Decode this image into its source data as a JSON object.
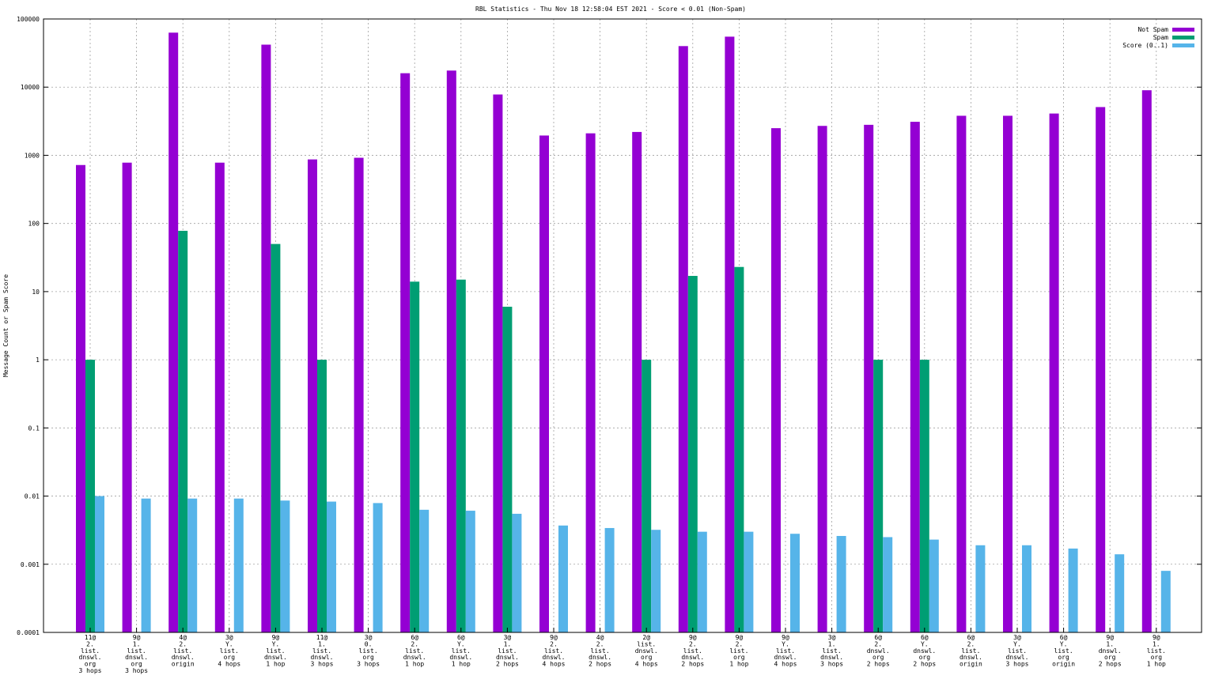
{
  "chart_data": {
    "type": "bar",
    "title": "RBL Statistics - Thu Nov 18 12:58:04 EST 2021 - Score < 0.01 (Non-Spam)",
    "xlabel": "",
    "ylabel": "Message Count or Spam Score",
    "yscale": "log",
    "ylim": [
      0.0001,
      100000
    ],
    "yticks": [
      "0.0001",
      "0.001",
      "0.01",
      "0.1",
      "1",
      "10",
      "100",
      "1000",
      "10000",
      "100000"
    ],
    "grid": true,
    "legend_position": "top-right",
    "categories": [
      [
        "11@",
        "2.",
        "list.",
        "dnswl.",
        "org",
        "3 hops"
      ],
      [
        "9@",
        "1.",
        "list.",
        "dnswl.",
        "org",
        "3 hops"
      ],
      [
        "4@",
        "2.",
        "list.",
        "dnswl.",
        "origin"
      ],
      [
        "3@",
        "Y.",
        "list.",
        "org",
        "4 hops"
      ],
      [
        "9@",
        "Y.",
        "list.",
        "dnswl.",
        "1 hop"
      ],
      [
        "11@",
        "1.",
        "list.",
        "dnswl.",
        "3 hops"
      ],
      [
        "3@",
        "0.",
        "list.",
        "org",
        "3 hops"
      ],
      [
        "6@",
        "2.",
        "list.",
        "dnswl.",
        "1 hop"
      ],
      [
        "6@",
        "Y.",
        "list.",
        "dnswl.",
        "1 hop"
      ],
      [
        "3@",
        "1.",
        "list.",
        "dnswl.",
        "2 hops"
      ],
      [
        "9@",
        "2.",
        "list.",
        "dnswl.",
        "4 hops"
      ],
      [
        "4@",
        "2.",
        "list.",
        "dnswl.",
        "2 hops"
      ],
      [
        "2@",
        "list.",
        "dnswl.",
        "org",
        "4 hops"
      ],
      [
        "9@",
        "2.",
        "list.",
        "dnswl.",
        "2 hops"
      ],
      [
        "9@",
        "2.",
        "list.",
        "org",
        "1 hop"
      ],
      [
        "9@",
        "Y.",
        "list.",
        "dnswl.",
        "4 hops"
      ],
      [
        "3@",
        "1.",
        "list.",
        "dnswl.",
        "3 hops"
      ],
      [
        "6@",
        "2.",
        "dnswl.",
        "org",
        "2 hops"
      ],
      [
        "6@",
        "Y.",
        "dnswl.",
        "org",
        "2 hops"
      ],
      [
        "6@",
        "2.",
        "list.",
        "dnswl.",
        "origin"
      ],
      [
        "3@",
        "Y.",
        "list.",
        "dnswl.",
        "3 hops"
      ],
      [
        "6@",
        "Y.",
        "list.",
        "org",
        "origin"
      ],
      [
        "9@",
        "1.",
        "dnswl.",
        "org",
        "2 hops"
      ],
      [
        "9@",
        "1.",
        "list.",
        "org",
        "1 hop"
      ]
    ],
    "series": [
      {
        "name": "Not Spam",
        "color": "#9400d3",
        "values": [
          720,
          780,
          63000,
          780,
          42000,
          870,
          920,
          16000,
          17500,
          7800,
          1950,
          2100,
          2200,
          40000,
          55000,
          2500,
          2700,
          2800,
          3100,
          3800,
          3800,
          4100,
          5100,
          9000
        ]
      },
      {
        "name": "Spam",
        "color": "#009e73",
        "values": [
          1,
          0,
          78,
          0,
          50,
          1,
          0,
          14,
          15,
          6,
          0,
          0,
          1,
          17,
          23,
          0,
          0,
          1,
          1,
          0,
          0,
          0,
          0,
          0
        ]
      },
      {
        "name": "Score (0..1)",
        "color": "#56b4e9",
        "values": [
          0.01,
          0.0092,
          0.0092,
          0.0092,
          0.0086,
          0.0083,
          0.0079,
          0.0063,
          0.0061,
          0.0055,
          0.0037,
          0.0034,
          0.0032,
          0.003,
          0.003,
          0.0028,
          0.0026,
          0.0025,
          0.0023,
          0.0019,
          0.0019,
          0.0017,
          0.0014,
          0.0008
        ]
      }
    ]
  }
}
